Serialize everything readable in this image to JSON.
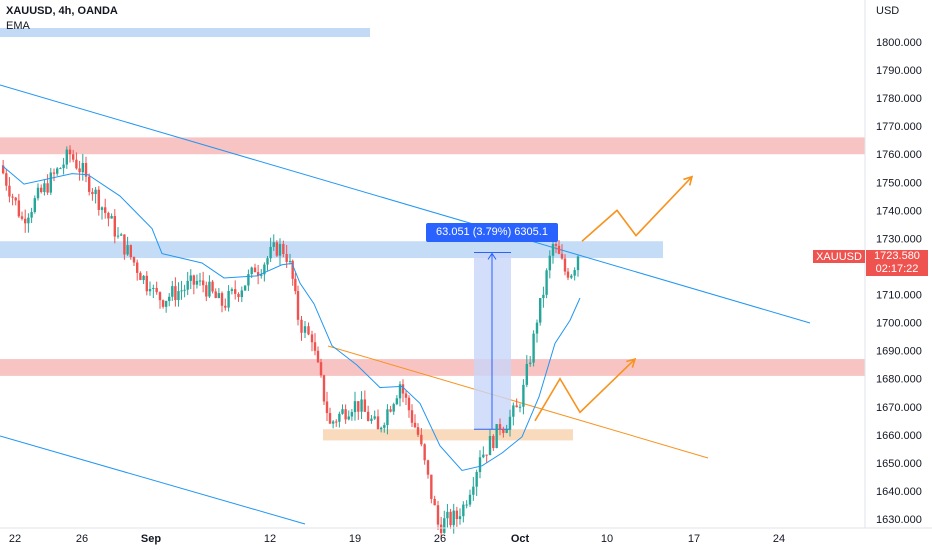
{
  "header": {
    "title": "XAUUSD, 4h, OANDA",
    "indicator": "EMA"
  },
  "price_axis": {
    "unit": "USD",
    "labels": [
      "1800.000",
      "1790.000",
      "1780.000",
      "1770.000",
      "1760.000",
      "1750.000",
      "1740.000",
      "1730.000",
      "1710.000",
      "1700.000",
      "1690.000",
      "1680.000",
      "1670.000",
      "1660.000",
      "1650.000",
      "1640.000",
      "1630.000"
    ]
  },
  "time_axis": {
    "labels": [
      "22",
      "26",
      "Sep",
      "12",
      "19",
      "26",
      "Oct",
      "10",
      "17",
      "24"
    ]
  },
  "last_price": {
    "symbol": "XAUUSD",
    "price": "1723.580",
    "countdown": "02:17:22",
    "color": "#ef5350"
  },
  "measure": {
    "label": "63.051 (3.79%) 6305.1",
    "from_price": 1662.0,
    "to_price": 1725.0
  },
  "colors": {
    "up": "#26a69a",
    "down": "#ef5350",
    "ema": "#2196f3",
    "trendline": "#2196f3",
    "orange": "#f7931e",
    "resistance_zone": "#f7b8b8",
    "support_zone_blue": "#bbd6f5",
    "support_zone_orange": "#f9d3b2",
    "measure_fill": "#c8d6f9"
  },
  "chart_data": {
    "type": "candlestick",
    "title": "XAUUSD, 4h, OANDA",
    "ylim": [
      1627,
      1803
    ],
    "y_ticks": [
      1630,
      1640,
      1650,
      1660,
      1670,
      1680,
      1690,
      1700,
      1710,
      1720,
      1730,
      1740,
      1750,
      1760,
      1770,
      1780,
      1790,
      1800
    ],
    "x_ticks": [
      "22",
      "26",
      "Sep",
      "12",
      "19",
      "26",
      "Oct",
      "10",
      "17",
      "24"
    ],
    "series_summary": [
      {
        "date": "Aug 19",
        "close": 1756
      },
      {
        "date": "Aug 22",
        "close": 1737
      },
      {
        "date": "Aug 25",
        "close": 1760
      },
      {
        "date": "Aug 26",
        "close": 1752
      },
      {
        "date": "Aug 28",
        "close": 1731
      },
      {
        "date": "Sep 1",
        "close": 1712
      },
      {
        "date": "Sep 2",
        "close": 1708
      },
      {
        "date": "Sep 5",
        "close": 1715
      },
      {
        "date": "Sep 7",
        "close": 1706
      },
      {
        "date": "Sep 9",
        "close": 1718
      },
      {
        "date": "Sep 12",
        "close": 1728
      },
      {
        "date": "Sep 13",
        "close": 1722
      },
      {
        "date": "Sep 14",
        "close": 1701
      },
      {
        "date": "Sep 15",
        "close": 1693
      },
      {
        "date": "Sep 16",
        "close": 1664
      },
      {
        "date": "Sep 19",
        "close": 1672
      },
      {
        "date": "Sep 21",
        "close": 1662
      },
      {
        "date": "Sep 22",
        "close": 1678
      },
      {
        "date": "Sep 23",
        "close": 1660
      },
      {
        "date": "Sep 26",
        "close": 1628
      },
      {
        "date": "Sep 28",
        "close": 1631
      },
      {
        "date": "Sep 29",
        "close": 1652
      },
      {
        "date": "Sep 30",
        "close": 1662
      },
      {
        "date": "Oct 1",
        "close": 1670
      },
      {
        "date": "Oct 3",
        "close": 1700
      },
      {
        "date": "Oct 4",
        "close": 1728
      },
      {
        "date": "Oct 5",
        "close": 1716
      },
      {
        "date": "Oct 6",
        "close": 1723.58
      }
    ],
    "zones": [
      {
        "name": "resistance-upper",
        "from": 1760,
        "to": 1766
      },
      {
        "name": "resistance-mid",
        "from": 1681,
        "to": 1687
      },
      {
        "name": "support-blue",
        "from": 1723,
        "to": 1729
      },
      {
        "name": "support-orange",
        "from": 1658,
        "to": 1662
      }
    ],
    "projections": [
      {
        "name": "upper-path",
        "points": [
          [
            1729,
            "Oct 6"
          ],
          [
            1740,
            "Oct 10"
          ],
          [
            1731,
            "Oct 12"
          ],
          [
            1752,
            "Oct 17"
          ]
        ]
      },
      {
        "name": "lower-path",
        "points": [
          [
            1665,
            "Oct 3"
          ],
          [
            1680,
            "Oct 6"
          ],
          [
            1668,
            "Oct 8"
          ],
          [
            1687,
            "Oct 13"
          ]
        ]
      }
    ]
  }
}
